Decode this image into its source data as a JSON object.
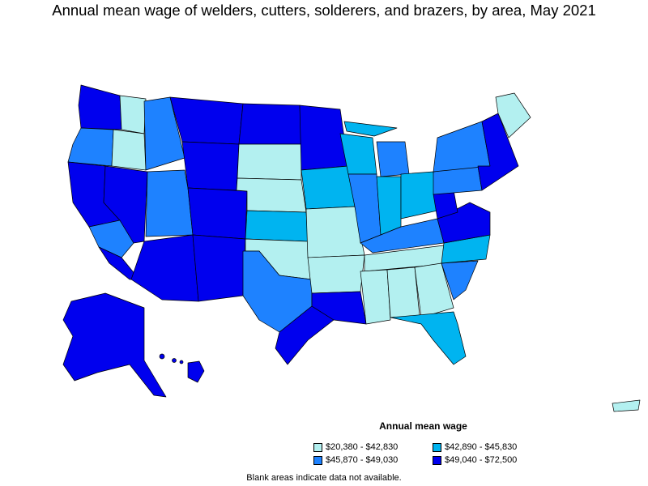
{
  "title": "Annual mean wage of welders, cutters, solderers, and brazers, by area, May 2021",
  "legend": {
    "title": "Annual mean wage",
    "items": [
      {
        "label": "$20,380 - $42,830",
        "color": "#b3f0f0"
      },
      {
        "label": "$42,890 - $45,830",
        "color": "#00b4f0"
      },
      {
        "label": "$45,870 - $49,030",
        "color": "#1e82ff"
      },
      {
        "label": "$49,040 - $72,500",
        "color": "#0000ee"
      }
    ]
  },
  "note": "Blank areas indicate data not available.",
  "regions": [
    {
      "name": "washington-west",
      "tier": 3
    },
    {
      "name": "washington-east",
      "tier": 0
    },
    {
      "name": "oregon-west",
      "tier": 2
    },
    {
      "name": "oregon-east",
      "tier": 0
    },
    {
      "name": "california-north",
      "tier": 3
    },
    {
      "name": "california-central",
      "tier": 2
    },
    {
      "name": "california-south",
      "tier": 3
    },
    {
      "name": "nevada",
      "tier": 3
    },
    {
      "name": "idaho",
      "tier": 2
    },
    {
      "name": "montana",
      "tier": 3
    },
    {
      "name": "wyoming",
      "tier": 3
    },
    {
      "name": "utah",
      "tier": 2
    },
    {
      "name": "arizona",
      "tier": 3
    },
    {
      "name": "new-mexico",
      "tier": 3
    },
    {
      "name": "colorado",
      "tier": 3
    },
    {
      "name": "north-dakota",
      "tier": 3
    },
    {
      "name": "south-dakota",
      "tier": 0
    },
    {
      "name": "nebraska",
      "tier": 0
    },
    {
      "name": "kansas",
      "tier": 1
    },
    {
      "name": "oklahoma",
      "tier": 0
    },
    {
      "name": "texas-north",
      "tier": 2
    },
    {
      "name": "texas-gulf",
      "tier": 3
    },
    {
      "name": "minnesota",
      "tier": 3
    },
    {
      "name": "iowa",
      "tier": 1
    },
    {
      "name": "missouri",
      "tier": 0
    },
    {
      "name": "arkansas",
      "tier": 0
    },
    {
      "name": "louisiana",
      "tier": 3
    },
    {
      "name": "wisconsin",
      "tier": 1
    },
    {
      "name": "michigan-upper",
      "tier": 1
    },
    {
      "name": "michigan-lower",
      "tier": 2
    },
    {
      "name": "illinois",
      "tier": 2
    },
    {
      "name": "indiana",
      "tier": 1
    },
    {
      "name": "ohio",
      "tier": 1
    },
    {
      "name": "kentucky",
      "tier": 2
    },
    {
      "name": "tennessee",
      "tier": 0
    },
    {
      "name": "mississippi",
      "tier": 0
    },
    {
      "name": "alabama",
      "tier": 0
    },
    {
      "name": "georgia",
      "tier": 0
    },
    {
      "name": "florida",
      "tier": 1
    },
    {
      "name": "south-carolina",
      "tier": 2
    },
    {
      "name": "north-carolina",
      "tier": 1
    },
    {
      "name": "virginia",
      "tier": 3
    },
    {
      "name": "west-virginia",
      "tier": 3
    },
    {
      "name": "pennsylvania",
      "tier": 2
    },
    {
      "name": "new-york",
      "tier": 2
    },
    {
      "name": "new-england",
      "tier": 3
    },
    {
      "name": "maine",
      "tier": 0
    },
    {
      "name": "alaska",
      "tier": 3
    },
    {
      "name": "hawaii",
      "tier": 3
    },
    {
      "name": "puerto-rico",
      "tier": 0
    }
  ]
}
